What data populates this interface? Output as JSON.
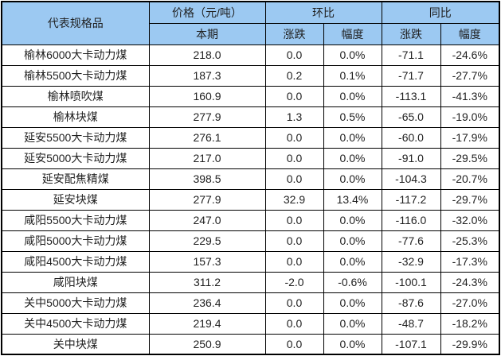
{
  "colors": {
    "header_bg": "#9CC9F2",
    "border": "#000000",
    "text": "#1f1f1f",
    "row_bg": "#ffffff"
  },
  "chart_data": {
    "type": "table",
    "title": "",
    "header": {
      "product": "代表规格品",
      "price_group": "价格（元/吨）",
      "current_period": "本期",
      "mom_group": "环比",
      "yoy_group": "同比",
      "rise_fall": "涨跌",
      "magnitude": "幅度"
    },
    "columns": [
      "代表规格品",
      "本期",
      "环比涨跌",
      "环比幅度",
      "同比涨跌",
      "同比幅度"
    ],
    "rows": [
      {
        "name": "榆林6000大卡动力煤",
        "price": "218.0",
        "mom_change": "0.0",
        "mom_pct": "0.0%",
        "yoy_change": "-71.1",
        "yoy_pct": "-24.6%"
      },
      {
        "name": "榆林5500大卡动力煤",
        "price": "187.3",
        "mom_change": "0.2",
        "mom_pct": "0.1%",
        "yoy_change": "-71.7",
        "yoy_pct": "-27.7%"
      },
      {
        "name": "榆林喷吹煤",
        "price": "160.9",
        "mom_change": "0.0",
        "mom_pct": "0.0%",
        "yoy_change": "-113.1",
        "yoy_pct": "-41.3%"
      },
      {
        "name": "榆林块煤",
        "price": "277.9",
        "mom_change": "1.3",
        "mom_pct": "0.5%",
        "yoy_change": "-65.0",
        "yoy_pct": "-19.0%"
      },
      {
        "name": "延安5500大卡动力煤",
        "price": "276.1",
        "mom_change": "0.0",
        "mom_pct": "0.0%",
        "yoy_change": "-60.0",
        "yoy_pct": "-17.9%"
      },
      {
        "name": "延安5000大卡动力煤",
        "price": "217.0",
        "mom_change": "0.0",
        "mom_pct": "0.0%",
        "yoy_change": "-91.0",
        "yoy_pct": "-29.5%"
      },
      {
        "name": "延安配焦精煤",
        "price": "398.5",
        "mom_change": "0.0",
        "mom_pct": "0.0%",
        "yoy_change": "-104.3",
        "yoy_pct": "-20.7%"
      },
      {
        "name": "延安块煤",
        "price": "277.9",
        "mom_change": "32.9",
        "mom_pct": "13.4%",
        "yoy_change": "-117.2",
        "yoy_pct": "-29.7%"
      },
      {
        "name": "咸阳5500大卡动力煤",
        "price": "247.0",
        "mom_change": "0.0",
        "mom_pct": "0.0%",
        "yoy_change": "-116.0",
        "yoy_pct": "-32.0%"
      },
      {
        "name": "咸阳5000大卡动力煤",
        "price": "229.5",
        "mom_change": "0.0",
        "mom_pct": "0.0%",
        "yoy_change": "-77.6",
        "yoy_pct": "-25.3%"
      },
      {
        "name": "咸阳4500大卡动力煤",
        "price": "157.3",
        "mom_change": "0.0",
        "mom_pct": "0.0%",
        "yoy_change": "-32.9",
        "yoy_pct": "-17.3%"
      },
      {
        "name": "咸阳块煤",
        "price": "311.2",
        "mom_change": "-2.0",
        "mom_pct": "-0.6%",
        "yoy_change": "-100.1",
        "yoy_pct": "-24.3%"
      },
      {
        "name": "关中5000大卡动力煤",
        "price": "236.4",
        "mom_change": "0.0",
        "mom_pct": "0.0%",
        "yoy_change": "-87.6",
        "yoy_pct": "-27.0%"
      },
      {
        "name": "关中4500大卡动力煤",
        "price": "219.4",
        "mom_change": "0.0",
        "mom_pct": "0.0%",
        "yoy_change": "-48.7",
        "yoy_pct": "-18.2%"
      },
      {
        "name": "关中块煤",
        "price": "250.9",
        "mom_change": "0.0",
        "mom_pct": "0.0%",
        "yoy_change": "-107.1",
        "yoy_pct": "-29.9%"
      }
    ]
  }
}
